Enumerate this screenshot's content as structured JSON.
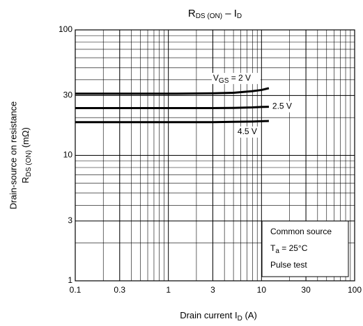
{
  "chart_data": {
    "type": "line",
    "title": [
      "R",
      "DS (ON)",
      " – I",
      "D"
    ],
    "x_label": [
      "Drain current  I",
      "D",
      "   (A)"
    ],
    "y_label": [
      "Drain-source on resistance",
      "R",
      "DS (ON)",
      "   (mΩ)"
    ],
    "x": [
      0.1,
      0.3,
      1,
      3,
      5,
      8,
      10,
      12
    ],
    "series": [
      {
        "name": [
          "V",
          "GS",
          " = 2 V"
        ],
        "color": "#000000",
        "values": [
          31,
          31,
          31,
          31.2,
          31.5,
          32.5,
          33.2,
          34.3
        ]
      },
      {
        "name": "2.5 V",
        "color": "#000000",
        "values": [
          23.8,
          23.8,
          23.8,
          23.8,
          23.9,
          24.1,
          24.3,
          24.4
        ]
      },
      {
        "name": "4.5 V",
        "color": "#000000",
        "values": [
          18.4,
          18.4,
          18.4,
          18.4,
          18.5,
          18.6,
          18.7,
          18.8
        ]
      }
    ],
    "xlim": [
      0.1,
      100
    ],
    "ylim": [
      1,
      100
    ],
    "xticks": [
      0.1,
      0.3,
      1,
      3,
      10,
      30,
      100
    ],
    "yticks": [
      1,
      3,
      10,
      30,
      100
    ],
    "xscale": "log",
    "yscale": "log",
    "grid": true,
    "notes": [
      [
        "Common source"
      ],
      [
        "T",
        "a",
        " = 25°C"
      ],
      [
        "Pulse test"
      ]
    ]
  }
}
